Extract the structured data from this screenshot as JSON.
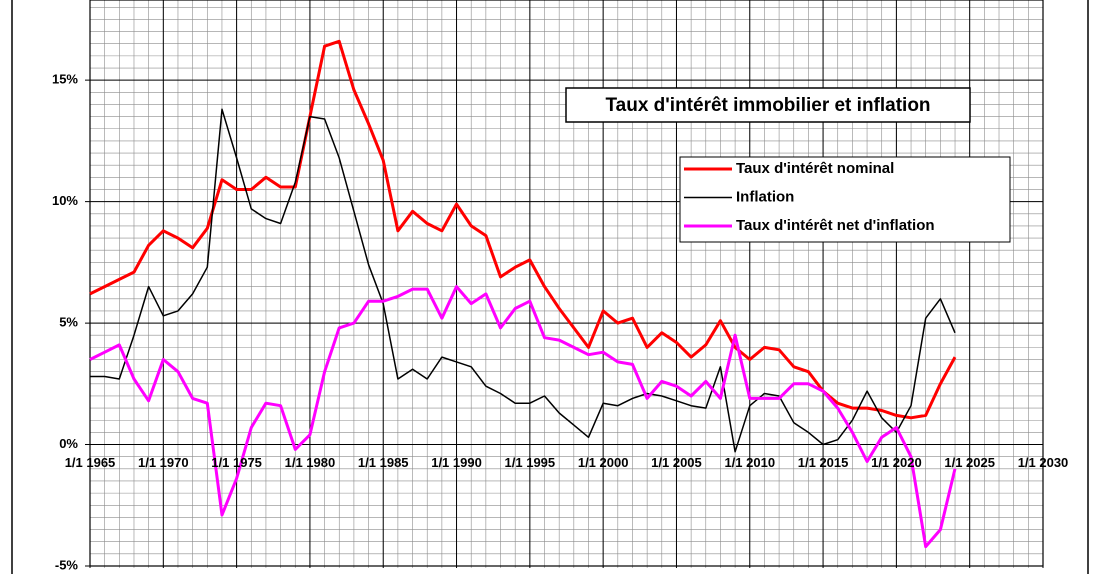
{
  "chart_data": {
    "type": "line",
    "title": "Taux d'intérêt immobilier et inflation",
    "x": [
      1965,
      1966,
      1967,
      1968,
      1969,
      1970,
      1971,
      1972,
      1973,
      1974,
      1975,
      1976,
      1977,
      1978,
      1979,
      1980,
      1981,
      1982,
      1983,
      1984,
      1985,
      1986,
      1987,
      1988,
      1989,
      1990,
      1991,
      1992,
      1993,
      1994,
      1995,
      1996,
      1997,
      1998,
      1999,
      2000,
      2001,
      2002,
      2003,
      2004,
      2005,
      2006,
      2007,
      2008,
      2009,
      2010,
      2011,
      2012,
      2013,
      2014,
      2015,
      2016,
      2017,
      2018,
      2019,
      2020,
      2021,
      2022,
      2023,
      2024
    ],
    "series": [
      {
        "name": "Taux d'intérêt nominal",
        "color": "#ff0000",
        "width": 3,
        "values": [
          6.2,
          6.5,
          6.8,
          7.1,
          8.2,
          8.8,
          8.5,
          8.1,
          8.9,
          10.9,
          10.5,
          10.5,
          11.0,
          10.6,
          10.6,
          13.5,
          16.4,
          16.6,
          14.6,
          13.2,
          11.7,
          8.8,
          9.6,
          9.1,
          8.8,
          9.9,
          9.0,
          8.6,
          6.9,
          7.3,
          7.6,
          6.5,
          5.6,
          4.8,
          4.0,
          5.5,
          5.0,
          5.2,
          4.0,
          4.6,
          4.2,
          3.6,
          4.1,
          5.1,
          4.0,
          3.5,
          4.0,
          3.9,
          3.2,
          3.0,
          2.2,
          1.7,
          1.5,
          1.5,
          1.4,
          1.2,
          1.1,
          1.2,
          2.5,
          3.6
        ]
      },
      {
        "name": "Inflation",
        "color": "#000000",
        "width": 1.5,
        "values": [
          2.8,
          2.8,
          2.7,
          4.5,
          6.5,
          5.3,
          5.5,
          6.2,
          7.3,
          13.8,
          11.8,
          9.7,
          9.3,
          9.1,
          10.8,
          13.5,
          13.4,
          11.8,
          9.6,
          7.4,
          5.8,
          2.7,
          3.1,
          2.7,
          3.6,
          3.4,
          3.2,
          2.4,
          2.1,
          1.7,
          1.7,
          2.0,
          1.3,
          0.8,
          0.3,
          1.7,
          1.6,
          1.9,
          2.1,
          2.0,
          1.8,
          1.6,
          1.5,
          3.2,
          -0.3,
          1.6,
          2.1,
          2.0,
          0.9,
          0.5,
          0.0,
          0.2,
          1.0,
          2.2,
          1.1,
          0.5,
          1.6,
          5.2,
          6.0,
          4.6
        ]
      },
      {
        "name": "Taux d'intérêt net d'inflation",
        "color": "#ff00ff",
        "width": 3,
        "values": [
          3.5,
          3.8,
          4.1,
          2.7,
          1.8,
          3.5,
          3.0,
          1.9,
          1.7,
          -2.9,
          -1.4,
          0.7,
          1.7,
          1.6,
          -0.2,
          0.4,
          3.0,
          4.8,
          5.0,
          5.9,
          5.9,
          6.1,
          6.4,
          6.4,
          5.2,
          6.5,
          5.8,
          6.2,
          4.8,
          5.6,
          5.9,
          4.4,
          4.3,
          4.0,
          3.7,
          3.8,
          3.4,
          3.3,
          1.9,
          2.6,
          2.4,
          2.0,
          2.6,
          1.9,
          4.5,
          1.9,
          1.9,
          1.9,
          2.5,
          2.5,
          2.2,
          1.5,
          0.5,
          -0.7,
          0.3,
          0.7,
          -0.5,
          -4.2,
          -3.5,
          -1.0
        ]
      }
    ],
    "xlim": [
      1965,
      2030
    ],
    "xticks": [
      {
        "value": 1965,
        "label": "1/1 1965"
      },
      {
        "value": 1970,
        "label": "1/1 1970"
      },
      {
        "value": 1975,
        "label": "1/1 1975"
      },
      {
        "value": 1980,
        "label": "1/1 1980"
      },
      {
        "value": 1985,
        "label": "1/1 1985"
      },
      {
        "value": 1990,
        "label": "1/1 1990"
      },
      {
        "value": 1995,
        "label": "1/1 1995"
      },
      {
        "value": 2000,
        "label": "1/1 2000"
      },
      {
        "value": 2005,
        "label": "1/1 2005"
      },
      {
        "value": 2010,
        "label": "1/1 2010"
      },
      {
        "value": 2015,
        "label": "1/1 2015"
      },
      {
        "value": 2020,
        "label": "1/1 2020"
      },
      {
        "value": 2025,
        "label": "1/1 2025"
      },
      {
        "value": 2030,
        "label": "1/1 2030"
      }
    ],
    "ylim": [
      -5,
      18.3
    ],
    "yticks": [
      {
        "value": -5,
        "label": "-5%"
      },
      {
        "value": 0,
        "label": "0%"
      },
      {
        "value": 5,
        "label": "5%"
      },
      {
        "value": 10,
        "label": "10%"
      },
      {
        "value": 15,
        "label": "15%"
      }
    ],
    "minor_grid": {
      "x": 1,
      "y": 0.5
    },
    "grid": true
  }
}
